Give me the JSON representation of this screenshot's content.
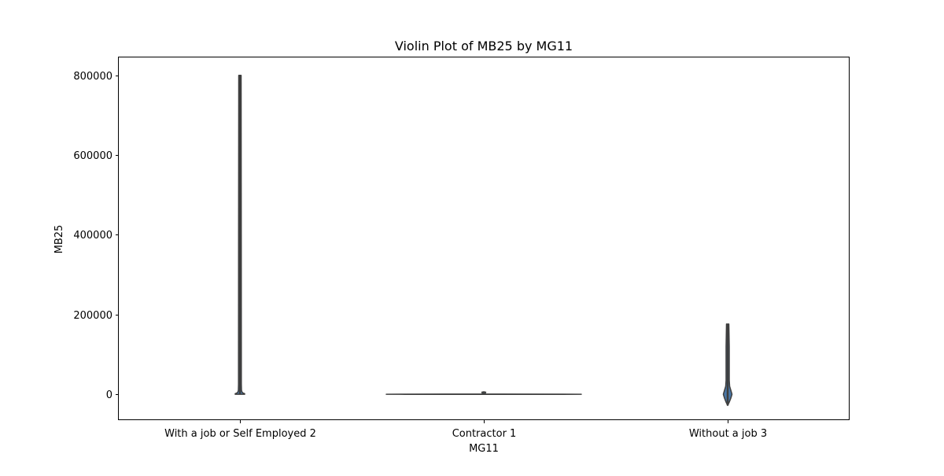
{
  "chart_data": {
    "type": "violin",
    "title": "Violin Plot of MB25 by MG11",
    "xlabel": "MG11",
    "ylabel": "MB25",
    "categories": [
      "With a job or Self Employed 2",
      "Contractor 1",
      "Without a job 3"
    ],
    "yticks": [
      0,
      200000,
      400000,
      600000,
      800000
    ],
    "ytick_labels": [
      "0",
      "200000",
      "400000",
      "600000",
      "800000"
    ],
    "ylim": [
      -65000,
      845000
    ],
    "grid": false,
    "violins": [
      {
        "category": "With a job or Self Employed 2",
        "min": 0,
        "max": 800000,
        "profile": [
          [
            0,
            6
          ],
          [
            1500,
            6
          ],
          [
            3000,
            4
          ],
          [
            6000,
            2.5
          ],
          [
            10000,
            2
          ],
          [
            25000,
            1.8
          ],
          [
            100000,
            1.8
          ],
          [
            400000,
            1.7
          ],
          [
            800000,
            1.5
          ]
        ]
      },
      {
        "category": "Contractor 1",
        "min": -500,
        "max": 6000,
        "profile": [
          [
            -500,
            0
          ],
          [
            -200,
            100
          ],
          [
            0,
            124
          ],
          [
            200,
            100
          ],
          [
            500,
            0
          ],
          [
            1000,
            2
          ],
          [
            3000,
            2
          ],
          [
            5000,
            2.5
          ],
          [
            6000,
            0
          ]
        ]
      },
      {
        "category": "Without a job 3",
        "min": -28000,
        "max": 176000,
        "profile": [
          [
            -28000,
            0
          ],
          [
            -20000,
            2
          ],
          [
            -10000,
            4
          ],
          [
            0,
            5.5
          ],
          [
            10000,
            4
          ],
          [
            20000,
            2.5
          ],
          [
            35000,
            2
          ],
          [
            60000,
            2
          ],
          [
            120000,
            2
          ],
          [
            176000,
            1.5
          ]
        ]
      }
    ],
    "colors": {
      "violin_fill": "#4a78a8",
      "violin_edge": "#3f3f3f",
      "inner": "#3f3f3f"
    }
  }
}
